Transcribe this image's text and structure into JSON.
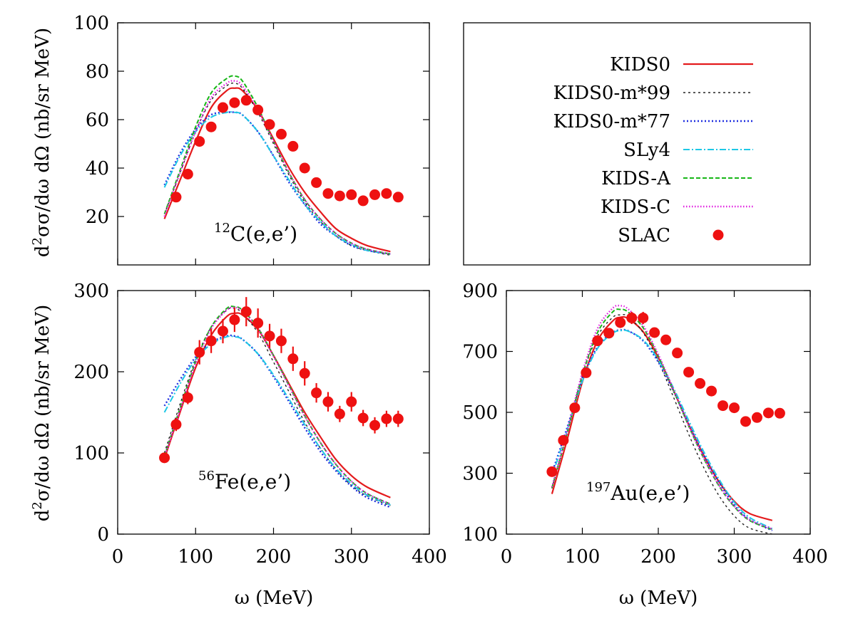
{
  "styles": {
    "KIDS0": {
      "color": "#e41a1c",
      "dash": "",
      "width": 2.2
    },
    "KIDS0-m*99": {
      "color": "#222222",
      "dash": "3 4",
      "width": 1.4
    },
    "KIDS0-m*77": {
      "color": "#1f2fe0",
      "dash": "2 3",
      "width": 2.4
    },
    "SLy4": {
      "color": "#1ec8e6",
      "dash": "9 3 2 3",
      "width": 2.0
    },
    "KIDS-A": {
      "color": "#17b617",
      "dash": "6 3",
      "width": 2.0
    },
    "KIDS-C": {
      "color": "#e020e0",
      "dash": "1.5 2.5",
      "width": 2.4
    },
    "SLAC": {
      "color": "#ee1111"
    }
  },
  "legend": {
    "entries": [
      "KIDS0",
      "KIDS0-m*99",
      "KIDS0-m*77",
      "SLy4",
      "KIDS-A",
      "KIDS-C",
      "SLAC"
    ]
  },
  "chart_data": [
    {
      "id": "c12",
      "type": "line",
      "title": "",
      "annotation": {
        "sup": "12",
        "text": "C(e,e’)"
      },
      "xlabel": "",
      "ylabel": "d2σ/dω dΩ (nb/sr MeV)",
      "xlim": [
        0,
        400
      ],
      "ylim": [
        0,
        100
      ],
      "xticks": [],
      "yticks": [
        20,
        40,
        60,
        80,
        100
      ],
      "series": [
        {
          "name": "KIDS0",
          "x": [
            60,
            80,
            100,
            120,
            140,
            150,
            160,
            180,
            200,
            220,
            240,
            260,
            280,
            300,
            320,
            350
          ],
          "y": [
            19,
            35,
            51,
            65,
            72,
            73,
            72,
            64,
            52,
            40,
            30,
            22,
            15,
            11,
            8,
            5.5
          ]
        },
        {
          "name": "KIDS0-m*99",
          "x": [
            60,
            80,
            100,
            120,
            140,
            150,
            160,
            180,
            200,
            220,
            240,
            260,
            280,
            300,
            320,
            350
          ],
          "y": [
            21,
            38,
            55,
            68,
            74,
            75,
            73,
            63,
            50,
            37,
            26,
            18,
            12,
            8,
            6,
            4
          ]
        },
        {
          "name": "KIDS0-m*77",
          "x": [
            60,
            80,
            100,
            120,
            140,
            150,
            160,
            180,
            200,
            220,
            240,
            260,
            280,
            300,
            320,
            350
          ],
          "y": [
            33,
            46,
            56,
            62,
            63,
            63,
            62,
            55,
            45,
            34,
            25,
            17,
            12,
            8,
            6,
            4.5
          ]
        },
        {
          "name": "SLy4",
          "x": [
            60,
            80,
            100,
            120,
            140,
            150,
            160,
            180,
            200,
            220,
            240,
            260,
            280,
            300,
            320,
            350
          ],
          "y": [
            32,
            45,
            55,
            61,
            63,
            63,
            62,
            55,
            45,
            35,
            25,
            18,
            12,
            8.5,
            6,
            4.5
          ]
        },
        {
          "name": "KIDS-A",
          "x": [
            60,
            80,
            100,
            120,
            140,
            150,
            160,
            180,
            200,
            220,
            240,
            260,
            280,
            300,
            320,
            350
          ],
          "y": [
            21,
            39,
            57,
            71,
            77,
            78,
            76,
            65,
            51,
            38,
            27,
            19,
            13,
            9,
            6.5,
            4.5
          ]
        },
        {
          "name": "KIDS-C",
          "x": [
            60,
            80,
            100,
            120,
            140,
            150,
            160,
            180,
            200,
            220,
            240,
            260,
            280,
            300,
            320,
            350
          ],
          "y": [
            20,
            38,
            55,
            69,
            75,
            76,
            74,
            64,
            51,
            38,
            27,
            19,
            13,
            9,
            6.5,
            4.5
          ]
        },
        {
          "name": "SLAC",
          "points": true,
          "x": [
            75,
            90,
            105,
            120,
            135,
            150,
            165,
            180,
            195,
            210,
            225,
            240,
            255,
            270,
            285,
            300,
            315,
            330,
            345,
            360
          ],
          "y": [
            28,
            37.5,
            51,
            57,
            65,
            67,
            68,
            64,
            58,
            54,
            49,
            40,
            34,
            29.5,
            28.5,
            29,
            26.5,
            29,
            29.5,
            28
          ]
        }
      ]
    },
    {
      "id": "fe56",
      "type": "line",
      "title": "",
      "annotation": {
        "sup": "56",
        "text": "Fe(e,e’)"
      },
      "xlabel": "ω (MeV)",
      "ylabel": "d2σ/dω dΩ (nb/sr MeV)",
      "xlim": [
        0,
        400
      ],
      "ylim": [
        0,
        300
      ],
      "xticks": [
        0,
        100,
        200,
        300,
        400
      ],
      "yticks": [
        0,
        100,
        200,
        300
      ],
      "series": [
        {
          "name": "KIDS0",
          "x": [
            60,
            80,
            100,
            120,
            140,
            150,
            160,
            180,
            200,
            220,
            240,
            260,
            280,
            300,
            320,
            350
          ],
          "y": [
            93,
            150,
            205,
            245,
            268,
            272,
            270,
            252,
            220,
            185,
            150,
            120,
            92,
            72,
            58,
            45
          ]
        },
        {
          "name": "KIDS0-m*99",
          "x": [
            60,
            80,
            100,
            120,
            140,
            150,
            160,
            180,
            200,
            220,
            240,
            260,
            280,
            300,
            320,
            350
          ],
          "y": [
            100,
            160,
            215,
            255,
            276,
            278,
            272,
            248,
            212,
            175,
            138,
            106,
            80,
            60,
            47,
            35
          ]
        },
        {
          "name": "KIDS0-m*77",
          "x": [
            60,
            80,
            100,
            120,
            140,
            150,
            160,
            180,
            200,
            220,
            240,
            260,
            280,
            300,
            320,
            350
          ],
          "y": [
            158,
            190,
            218,
            236,
            244,
            244,
            240,
            222,
            194,
            163,
            131,
            102,
            78,
            59,
            45,
            33
          ]
        },
        {
          "name": "SLy4",
          "x": [
            60,
            80,
            100,
            120,
            140,
            150,
            160,
            180,
            200,
            220,
            240,
            260,
            280,
            300,
            320,
            350
          ],
          "y": [
            150,
            185,
            215,
            234,
            243,
            243,
            240,
            222,
            196,
            166,
            135,
            106,
            81,
            62,
            48,
            36
          ]
        },
        {
          "name": "KIDS-A",
          "x": [
            60,
            80,
            100,
            120,
            140,
            150,
            160,
            180,
            200,
            220,
            240,
            260,
            280,
            300,
            320,
            350
          ],
          "y": [
            96,
            155,
            212,
            255,
            278,
            280,
            276,
            254,
            220,
            183,
            146,
            113,
            86,
            65,
            50,
            37
          ]
        },
        {
          "name": "KIDS-C",
          "x": [
            60,
            80,
            100,
            120,
            140,
            150,
            160,
            180,
            200,
            220,
            240,
            260,
            280,
            300,
            320,
            350
          ],
          "y": [
            95,
            153,
            210,
            253,
            276,
            279,
            275,
            253,
            219,
            182,
            145,
            113,
            86,
            65,
            50,
            37
          ]
        },
        {
          "name": "SLAC",
          "points": true,
          "x": [
            60,
            75,
            90,
            105,
            120,
            135,
            150,
            165,
            180,
            195,
            210,
            225,
            240,
            255,
            270,
            285,
            300,
            315,
            330,
            345,
            360
          ],
          "y": [
            94,
            135,
            168,
            224,
            238,
            250,
            264,
            274,
            260,
            244,
            238,
            216,
            198,
            174,
            163,
            148,
            163,
            143,
            134,
            142,
            142
          ],
          "err": [
            5,
            8,
            8,
            15,
            15,
            15,
            15,
            18,
            18,
            15,
            15,
            15,
            15,
            12,
            12,
            10,
            12,
            10,
            10,
            10,
            10
          ]
        }
      ]
    },
    {
      "id": "au197",
      "type": "line",
      "title": "",
      "annotation": {
        "sup": "197",
        "text": "Au(e,e’)"
      },
      "xlabel": "ω (MeV)",
      "ylabel": "",
      "xlim": [
        0,
        400
      ],
      "ylim": [
        100,
        900
      ],
      "xticks": [
        0,
        100,
        200,
        300,
        400
      ],
      "yticks": [
        100,
        300,
        500,
        700,
        900
      ],
      "series": [
        {
          "name": "KIDS0",
          "x": [
            60,
            80,
            100,
            120,
            140,
            150,
            160,
            180,
            200,
            220,
            240,
            260,
            280,
            300,
            320,
            350
          ],
          "y": [
            232,
            410,
            600,
            735,
            800,
            812,
            808,
            765,
            680,
            572,
            460,
            358,
            272,
            208,
            168,
            145
          ]
        },
        {
          "name": "KIDS0-m*99",
          "x": [
            60,
            80,
            100,
            120,
            140,
            150,
            160,
            180,
            200,
            220,
            240,
            260,
            280,
            300,
            320,
            350
          ],
          "y": [
            250,
            430,
            620,
            750,
            812,
            820,
            815,
            762,
            668,
            550,
            428,
            318,
            226,
            160,
            120,
            100
          ]
        },
        {
          "name": "KIDS0-m*77",
          "x": [
            60,
            80,
            100,
            120,
            140,
            150,
            160,
            180,
            200,
            220,
            240,
            260,
            280,
            300,
            320,
            350
          ],
          "y": [
            300,
            450,
            610,
            715,
            762,
            770,
            768,
            735,
            665,
            570,
            462,
            360,
            270,
            196,
            148,
            112
          ]
        },
        {
          "name": "SLy4",
          "x": [
            60,
            80,
            100,
            120,
            140,
            150,
            160,
            180,
            200,
            220,
            240,
            260,
            280,
            300,
            320,
            350
          ],
          "y": [
            290,
            442,
            602,
            710,
            760,
            768,
            767,
            738,
            672,
            580,
            473,
            370,
            280,
            205,
            155,
            118
          ]
        },
        {
          "name": "KIDS-A",
          "x": [
            60,
            80,
            100,
            120,
            140,
            150,
            160,
            180,
            200,
            220,
            240,
            260,
            280,
            300,
            320,
            350
          ],
          "y": [
            252,
            432,
            622,
            762,
            830,
            838,
            830,
            778,
            685,
            572,
            455,
            348,
            258,
            190,
            145,
            115
          ]
        },
        {
          "name": "KIDS-C",
          "x": [
            60,
            80,
            100,
            120,
            140,
            150,
            160,
            180,
            200,
            220,
            240,
            260,
            280,
            300,
            320,
            350
          ],
          "y": [
            255,
            438,
            630,
            775,
            842,
            850,
            840,
            785,
            690,
            575,
            457,
            350,
            260,
            192,
            147,
            117
          ]
        },
        {
          "name": "SLAC",
          "points": true,
          "x": [
            60,
            75,
            90,
            105,
            120,
            135,
            150,
            165,
            180,
            195,
            210,
            225,
            240,
            255,
            270,
            285,
            300,
            315,
            330,
            345,
            360
          ],
          "y": [
            305,
            408,
            515,
            630,
            735,
            760,
            795,
            810,
            810,
            762,
            738,
            695,
            632,
            595,
            570,
            522,
            515,
            470,
            483,
            498,
            497
          ],
          "err": [
            8,
            8,
            8,
            12,
            15,
            15,
            18,
            20,
            20,
            15,
            12,
            10,
            10,
            10,
            10,
            10,
            10,
            10,
            10,
            10,
            10
          ]
        }
      ]
    }
  ]
}
